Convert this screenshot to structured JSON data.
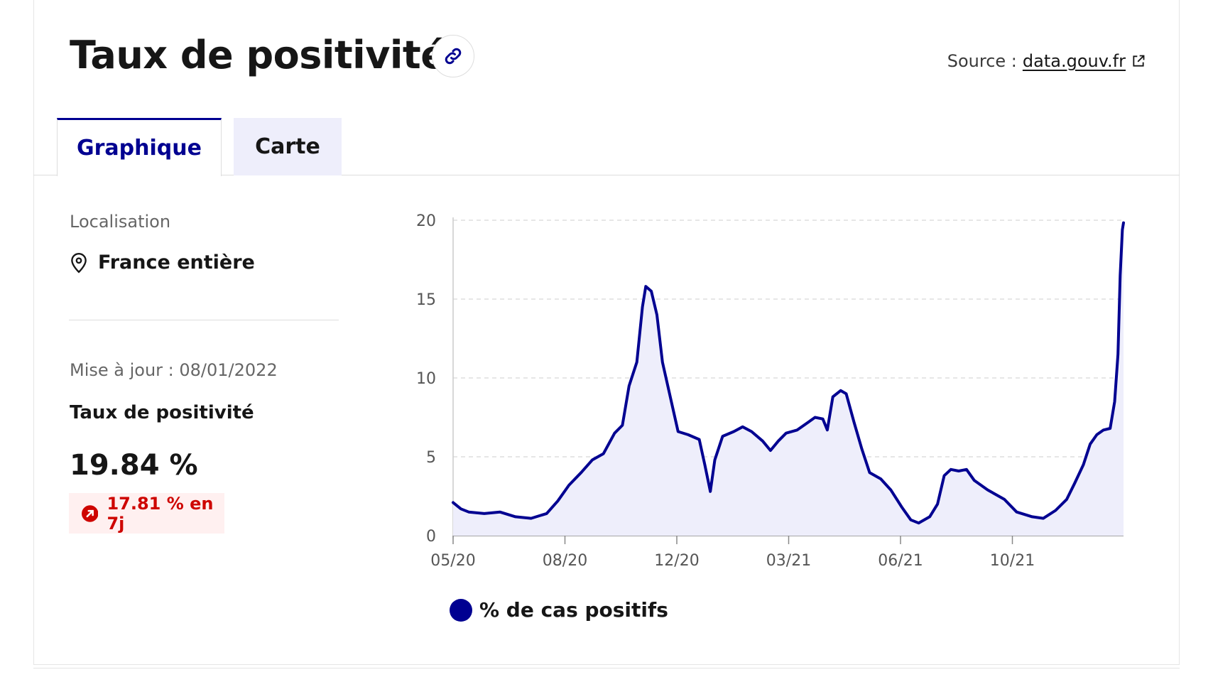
{
  "header": {
    "title": "Taux de positivité",
    "source_label": "Source :",
    "source_link": "data.gouv.fr"
  },
  "tabs": [
    {
      "label": "Graphique",
      "active": true
    },
    {
      "label": "Carte",
      "active": false
    }
  ],
  "sidebar": {
    "location_label": "Localisation",
    "location_value": "France entière",
    "updated": "Mise à jour : 08/01/2022",
    "metric_label": "Taux de positivité",
    "metric_value": "19.84 %",
    "trend": "17.81 % en 7j"
  },
  "icons": {
    "link": "link-icon",
    "external": "external-link-icon",
    "location": "map-pin-icon",
    "trend": "arrow-up-right-icon"
  },
  "colors": {
    "accent": "#000091",
    "area_fill": "#eeeefb",
    "trend_text": "#ce0500",
    "trend_bg": "#fff0f0"
  },
  "chart_data": {
    "type": "area",
    "title": "",
    "xlabel": "",
    "ylabel": "",
    "ylim": [
      0,
      20
    ],
    "yticks": [
      0,
      5,
      10,
      15,
      20
    ],
    "xticks": [
      "05/20",
      "08/20",
      "12/20",
      "03/21",
      "06/21",
      "10/21"
    ],
    "xlim": [
      "2020-05-13",
      "2022-01-05"
    ],
    "grid": true,
    "legend_position": "bottom-left",
    "series": [
      {
        "name": "% de cas positifs",
        "color": "#000091",
        "points": [
          [
            "2020-05-13",
            2.1
          ],
          [
            "2020-05-20",
            1.7
          ],
          [
            "2020-05-27",
            1.5
          ],
          [
            "2020-06-10",
            1.4
          ],
          [
            "2020-06-24",
            1.5
          ],
          [
            "2020-07-08",
            1.2
          ],
          [
            "2020-07-22",
            1.1
          ],
          [
            "2020-08-05",
            1.4
          ],
          [
            "2020-08-15",
            2.2
          ],
          [
            "2020-08-25",
            3.2
          ],
          [
            "2020-09-05",
            4.0
          ],
          [
            "2020-09-15",
            4.8
          ],
          [
            "2020-09-25",
            5.2
          ],
          [
            "2020-10-05",
            6.5
          ],
          [
            "2020-10-12",
            7.0
          ],
          [
            "2020-10-18",
            9.5
          ],
          [
            "2020-10-25",
            11.0
          ],
          [
            "2020-10-30",
            14.5
          ],
          [
            "2020-11-02",
            15.8
          ],
          [
            "2020-11-07",
            15.5
          ],
          [
            "2020-11-12",
            14.0
          ],
          [
            "2020-11-17",
            11.0
          ],
          [
            "2020-11-25",
            8.5
          ],
          [
            "2020-12-01",
            6.6
          ],
          [
            "2020-12-10",
            6.4
          ],
          [
            "2020-12-20",
            6.1
          ],
          [
            "2020-12-25",
            4.5
          ],
          [
            "2020-12-30",
            2.8
          ],
          [
            "2021-01-03",
            4.8
          ],
          [
            "2021-01-10",
            6.3
          ],
          [
            "2021-01-20",
            6.6
          ],
          [
            "2021-01-28",
            6.9
          ],
          [
            "2021-02-05",
            6.6
          ],
          [
            "2021-02-15",
            6.0
          ],
          [
            "2021-02-22",
            5.4
          ],
          [
            "2021-03-01",
            6.0
          ],
          [
            "2021-03-08",
            6.5
          ],
          [
            "2021-03-18",
            6.7
          ],
          [
            "2021-03-28",
            7.2
          ],
          [
            "2021-04-03",
            7.5
          ],
          [
            "2021-04-10",
            7.4
          ],
          [
            "2021-04-14",
            6.7
          ],
          [
            "2021-04-19",
            8.8
          ],
          [
            "2021-04-26",
            9.2
          ],
          [
            "2021-05-01",
            9.0
          ],
          [
            "2021-05-08",
            7.2
          ],
          [
            "2021-05-15",
            5.5
          ],
          [
            "2021-05-22",
            4.0
          ],
          [
            "2021-06-01",
            3.6
          ],
          [
            "2021-06-10",
            2.9
          ],
          [
            "2021-06-20",
            1.8
          ],
          [
            "2021-06-28",
            1.0
          ],
          [
            "2021-07-05",
            0.8
          ],
          [
            "2021-07-15",
            1.2
          ],
          [
            "2021-07-22",
            2.0
          ],
          [
            "2021-07-28",
            3.8
          ],
          [
            "2021-08-03",
            4.2
          ],
          [
            "2021-08-10",
            4.1
          ],
          [
            "2021-08-17",
            4.2
          ],
          [
            "2021-08-24",
            3.5
          ],
          [
            "2021-09-05",
            2.9
          ],
          [
            "2021-09-20",
            2.3
          ],
          [
            "2021-10-01",
            1.5
          ],
          [
            "2021-10-15",
            1.2
          ],
          [
            "2021-10-25",
            1.1
          ],
          [
            "2021-11-05",
            1.6
          ],
          [
            "2021-11-15",
            2.3
          ],
          [
            "2021-11-22",
            3.3
          ],
          [
            "2021-11-30",
            4.5
          ],
          [
            "2021-12-06",
            5.8
          ],
          [
            "2021-12-12",
            6.4
          ],
          [
            "2021-12-18",
            6.7
          ],
          [
            "2021-12-24",
            6.8
          ],
          [
            "2021-12-28",
            8.5
          ],
          [
            "2021-12-31",
            11.5
          ],
          [
            "2022-01-02",
            16.5
          ],
          [
            "2022-01-04",
            19.4
          ],
          [
            "2022-01-05",
            19.84
          ]
        ]
      }
    ]
  }
}
